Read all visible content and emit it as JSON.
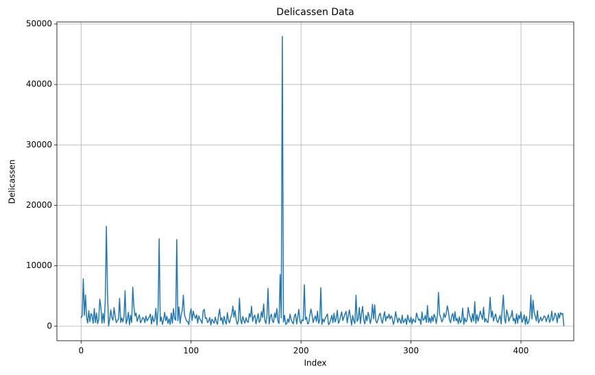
{
  "chart_data": {
    "type": "line",
    "title": "Delicassen Data",
    "xlabel": "Index",
    "ylabel": "Delicassen",
    "color": "#1f77b4",
    "grid": true,
    "xlim": [
      -22,
      448
    ],
    "xticks": [
      0,
      100,
      200,
      300,
      400
    ],
    "ylim": [
      -2397,
      50340
    ],
    "yticks": [
      0,
      10000,
      20000,
      30000,
      40000,
      50000
    ],
    "values": [
      1338,
      1776,
      7844,
      1788,
      5185,
      1451,
      545,
      2566,
      750,
      2098,
      1744,
      497,
      2931,
      602,
      2168,
      412,
      1080,
      4478,
      3181,
      501,
      2124,
      569,
      4334,
      16523,
      5778,
      57,
      1106,
      2713,
      1385,
      1000,
      3080,
      1630,
      590,
      920,
      1200,
      4622,
      610,
      1400,
      700,
      1500,
      5864,
      412,
      1100,
      2300,
      240,
      1800,
      620,
      6465,
      3300,
      1700,
      2200,
      800,
      1400,
      1900,
      560,
      920,
      1450,
      1300,
      600,
      1680,
      900,
      1200,
      1530,
      2000,
      350,
      1700,
      750,
      1100,
      2950,
      180,
      2600,
      14472,
      800,
      1500,
      300,
      1050,
      2300,
      900,
      1650,
      470,
      1200,
      300,
      2200,
      500,
      2900,
      1300,
      1000,
      14351,
      900,
      3200,
      480,
      1860,
      2600,
      5137,
      1900,
      1320,
      820,
      780,
      250,
      2050,
      2900,
      950,
      2500,
      1760,
      1300,
      1900,
      540,
      1700,
      1200,
      920,
      450,
      2500,
      2800,
      1280,
      1400,
      600,
      850,
      1430,
      210,
      1160,
      820,
      500,
      1500,
      740,
      320,
      1780,
      2850,
      950,
      1400,
      300,
      1650,
      880,
      340,
      2270,
      1000,
      560,
      1400,
      1890,
      3320,
      1500,
      2600,
      1070,
      320,
      820,
      4640,
      1200,
      380,
      1600,
      950,
      520,
      1400,
      800,
      640,
      2090,
      1500,
      3300,
      800,
      1550,
      1840,
      400,
      1170,
      2100,
      630,
      980,
      2420,
      1450,
      3690,
      1020,
      430,
      1730,
      6250,
      380,
      1550,
      2000,
      900,
      600,
      2170,
      1400,
      2920,
      800,
      450,
      8550,
      1380,
      47943,
      700,
      1800,
      310,
      420,
      1200,
      650,
      2000,
      1100,
      700,
      400,
      1700,
      2050,
      380,
      1590,
      2800,
      820,
      420,
      1080,
      900,
      6854,
      1100,
      1500,
      380,
      530,
      1800,
      2850,
      1900,
      600,
      1230,
      1700,
      780,
      2500,
      470,
      1040,
      6372,
      300,
      1200,
      700,
      1320,
      1680,
      2030,
      250,
      490,
      1100,
      1800,
      590,
      2140,
      700,
      1300,
      2640,
      480,
      880,
      1680,
      2380,
      930,
      1500,
      2050,
      2460,
      560,
      1800,
      2690,
      1410,
      200,
      1800,
      860,
      460,
      5137,
      800,
      1200,
      3120,
      450,
      2130,
      3280,
      1080,
      390,
      1790,
      900,
      2300,
      1600,
      440,
      1350,
      3630,
      1220,
      3530,
      900,
      540,
      1100,
      1800,
      2170,
      1060,
      460,
      1530,
      2400,
      860,
      1630,
      1340,
      2010,
      1200,
      1700,
      1300,
      300,
      920,
      2400,
      1480,
      600,
      1350,
      1000,
      460,
      1830,
      580,
      860,
      1270,
      300,
      1840,
      1040,
      640,
      1500,
      400,
      1200,
      870,
      650,
      2180,
      1560,
      980,
      1200,
      300,
      2370,
      980,
      1130,
      1800,
      640,
      3430,
      640,
      1400,
      560,
      1680,
      800,
      1970,
      1500,
      440,
      1820,
      5609,
      2000,
      1500,
      720,
      1040,
      2180,
      1450,
      2010,
      3380,
      2500,
      1020,
      600,
      1700,
      2100,
      850,
      2400,
      900,
      1300,
      430,
      1560,
      580,
      1000,
      3000,
      320,
      1390,
      720,
      1050,
      3100,
      2000,
      1400,
      680,
      2100,
      840,
      4070,
      470,
      1900,
      830,
      1640,
      2500,
      1800,
      1120,
      3150,
      700,
      1250,
      780,
      600,
      2260,
      4800,
      1500,
      2500,
      870,
      1540,
      2030,
      930,
      600,
      1230,
      1800,
      380,
      3000,
      5137,
      1320,
      500,
      2700,
      2000,
      790,
      1450,
      1600,
      2600,
      900,
      1270,
      420,
      2040,
      540,
      1800,
      1250,
      2400,
      650,
      1100,
      1900,
      300,
      1600,
      400,
      720,
      1500,
      5137,
      1190,
      4300,
      2280,
      1680,
      860,
      2580,
      560,
      1020,
      1500,
      870,
      1200,
      1700,
      1560,
      750,
      1430,
      1900,
      640,
      1100,
      2500,
      920,
      1300,
      2160,
      1750,
      600,
      2180,
      1350,
      2250,
      1940,
      2125,
      52
    ]
  }
}
